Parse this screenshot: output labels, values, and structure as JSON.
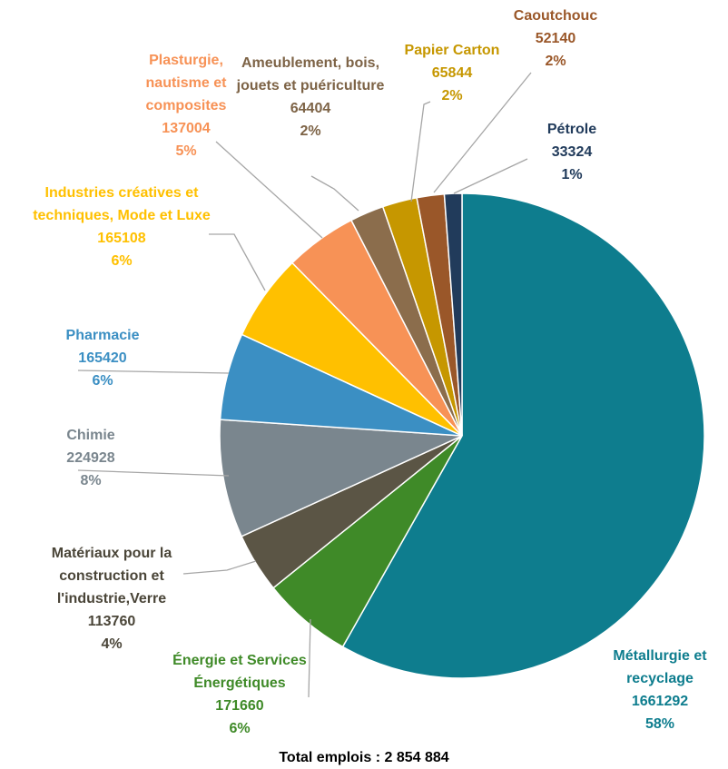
{
  "chart_data": {
    "type": "pie",
    "categories": [
      "Métallurgie et recyclage",
      "Énergie et Services Énergétiques",
      "Matériaux pour la construction et l'industrie,Verre",
      "Chimie",
      "Pharmacie",
      "Industries créatives et techniques, Mode et Luxe",
      "Plasturgie, nautisme et composites",
      "Ameublement, bois, jouets et puériculture",
      "Papier Carton",
      "Caoutchouc",
      "Pétrole"
    ],
    "values": [
      1661292,
      171660,
      113760,
      224928,
      165420,
      165108,
      137004,
      64404,
      65844,
      52140,
      33324
    ],
    "percent_labels": [
      "58%",
      "6%",
      "4%",
      "8%",
      "6%",
      "6%",
      "5%",
      "2%",
      "2%",
      "2%",
      "1%"
    ],
    "colors": [
      "#0e7d8e",
      "#3f8a28",
      "#5b5545",
      "#7a868e",
      "#3b8fc3",
      "#ffc000",
      "#f79256",
      "#8b6d4c",
      "#c69700",
      "#9a5729",
      "#213b5b"
    ],
    "total": "Total emplois : 2 854 884"
  }
}
